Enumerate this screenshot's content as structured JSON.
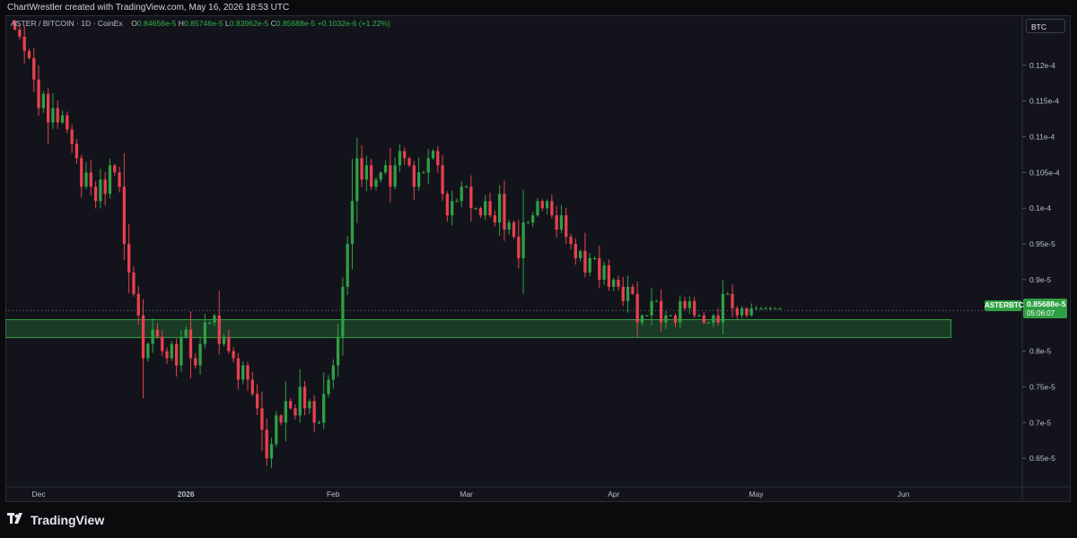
{
  "header": {
    "credit": "ChartWrestler created with TradingView.com, May 16, 2026 18:53 UTC"
  },
  "legend": {
    "symbol": "ASTER / BITCOIN · 1D · CoinEx",
    "open_label": "O",
    "open": "0.84656e-5",
    "high_label": "H",
    "high": "0.85746e-5",
    "low_label": "L",
    "low": "0.83962e-5",
    "close_label": "C",
    "close": "0.85688e-5",
    "change": "+0.1032e-6 (+1.22%)"
  },
  "unit_button": "BTC",
  "last_price": {
    "symbol": "ASTERBTC",
    "price": "0.85688e-5",
    "countdown": "05:06:07"
  },
  "footer": {
    "brand": "TradingView"
  },
  "colors": {
    "up": "#2ea043",
    "down": "#e8404f",
    "zone": "#2ea043",
    "background": "#13141b"
  },
  "icons": {
    "brand_logo": "tradingview-logo-icon"
  },
  "chart_data": {
    "type": "candlestick",
    "title": "ASTER / BITCOIN · 1D · CoinEx",
    "y_unit": "BTC",
    "ylim": [
      6.1e-06,
      1.27e-05
    ],
    "y_ticks": [
      {
        "value": 6.5e-06,
        "label": "0.65e-5"
      },
      {
        "value": 7e-06,
        "label": "0.7e-5"
      },
      {
        "value": 7.5e-06,
        "label": "0.75e-5"
      },
      {
        "value": 8e-06,
        "label": "0.8e-5"
      },
      {
        "value": 8.5e-06,
        "label": ""
      },
      {
        "value": 9e-06,
        "label": "0.9e-5"
      },
      {
        "value": 9.5e-06,
        "label": "0.95e-5"
      },
      {
        "value": 1e-05,
        "label": "0.1e-4"
      },
      {
        "value": 1.05e-05,
        "label": "0.105e-4"
      },
      {
        "value": 1.1e-05,
        "label": "0.11e-4"
      },
      {
        "value": 1.15e-05,
        "label": "0.115e-4"
      },
      {
        "value": 1.2e-05,
        "label": "0.12e-4"
      }
    ],
    "x_ticks": [
      {
        "day": 5,
        "label": "Dec"
      },
      {
        "day": 36,
        "label": "2026"
      },
      {
        "day": 67,
        "label": "Feb"
      },
      {
        "day": 95,
        "label": "Mar"
      },
      {
        "day": 126,
        "label": "Apr"
      },
      {
        "day": 156,
        "label": "May"
      },
      {
        "day": 187,
        "label": "Jun"
      }
    ],
    "x_range_days": [
      -2,
      212
    ],
    "support_zone": {
      "low": 8.19e-06,
      "high": 8.44e-06,
      "start_day": -2,
      "end_day": 197
    },
    "current_price": 8.5688e-06,
    "last_day": 171,
    "daily_closes": [
      1.25e-05,
      1.24e-05,
      1.22e-05,
      1.21e-05,
      1.18e-05,
      1.14e-05,
      1.16e-05,
      1.12e-05,
      1.14e-05,
      1.12e-05,
      1.13e-05,
      1.11e-05,
      1.09e-05,
      1.07e-05,
      1.03e-05,
      1.05e-05,
      1.03e-05,
      1.01e-05,
      1.04e-05,
      1.02e-05,
      1.06e-05,
      1.05e-05,
      1.03e-05,
      9.5e-06,
      9.1e-06,
      8.8e-06,
      8.5e-06,
      7.9e-06,
      8.1e-06,
      8.3e-06,
      8.2e-06,
      8e-06,
      7.9e-06,
      8.1e-06,
      7.8e-06,
      8.2e-06,
      8.3e-06,
      7.9e-06,
      7.8e-06,
      8.1e-06,
      8.4e-06,
      8.4e-06,
      8.5e-06,
      8.1e-06,
      8.2e-06,
      8e-06,
      7.9e-06,
      7.6e-06,
      7.8e-06,
      7.6e-06,
      7.4e-06,
      7.2e-06,
      6.9e-06,
      6.5e-06,
      6.7e-06,
      7.1e-06,
      7e-06,
      7.3e-06,
      7.2e-06,
      7.1e-06,
      7.5e-06,
      7.2e-06,
      7.3e-06,
      7e-06,
      7e-06,
      7.4e-06,
      7.6e-06,
      7.8e-06,
      8.2e-06,
      8.9e-06,
      9.5e-06,
      1.01e-05,
      1.07e-05,
      1.04e-05,
      1.06e-05,
      1.03e-05,
      1.04e-05,
      1.05e-05,
      1.06e-05,
      1.03e-05,
      1.06e-05,
      1.08e-05,
      1.07e-05,
      1.06e-05,
      1.03e-05,
      1.05e-05,
      1.05e-05,
      1.07e-05,
      1.08e-05,
      1.06e-05,
      1.02e-05,
      9.9e-06,
      1.01e-05,
      1.01e-05,
      1.03e-05,
      1.03e-05,
      1e-05,
      1e-05,
      9.9e-06,
      1.01e-05,
      9.9e-06,
      9.8e-06,
      1.02e-05,
      9.7e-06,
      9.8e-06,
      9.6e-06,
      9.3e-06,
      9.8e-06,
      9.8e-06,
      9.9e-06,
      1.01e-05,
      1e-05,
      1.01e-05,
      9.9e-06,
      9.7e-06,
      9.9e-06,
      9.6e-06,
      9.5e-06,
      9.3e-06,
      9.4e-06,
      9.1e-06,
      9.3e-06,
      9.3e-06,
      9e-06,
      9.2e-06,
      8.9e-06,
      9e-06,
      8.9e-06,
      8.7e-06,
      8.9e-06,
      8.8e-06,
      8.4e-06,
      8.5e-06,
      8.5e-06,
      8.7e-06,
      8.7e-06,
      8.4e-06,
      8.5e-06,
      8.5e-06,
      8.4e-06,
      8.7e-06,
      8.6e-06,
      8.7e-06,
      8.5e-06,
      8.5e-06,
      8.4e-06,
      8.4e-06,
      8.5e-06,
      8.4e-06,
      8.8e-06,
      8.8e-06,
      8.6e-06,
      8.5e-06,
      8.6e-06,
      8.5e-06,
      8.6e-06,
      8.6e-06,
      8.6e-06,
      8.6e-06,
      8.6e-06,
      8.6e-06,
      8.6e-06
    ]
  }
}
